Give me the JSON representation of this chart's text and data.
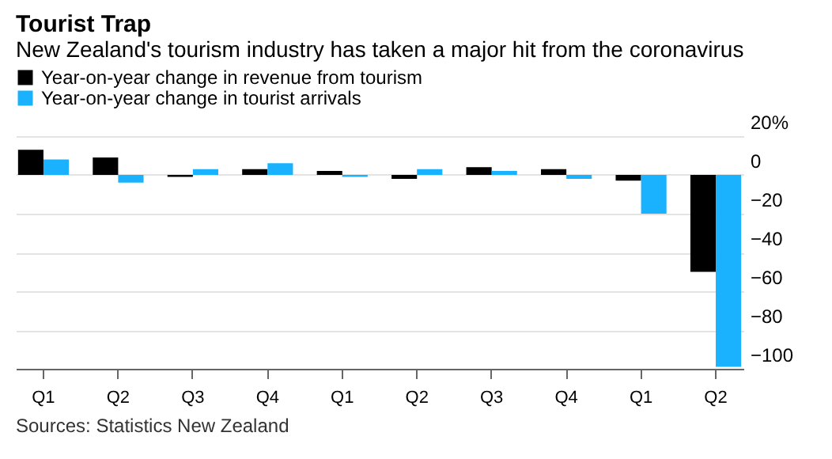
{
  "chart_data": {
    "type": "bar",
    "title": "Tourist Trap",
    "subtitle": "New Zealand's tourism industry has taken a major hit from the coronavirus",
    "categories": [
      "Q1",
      "Q2",
      "Q3",
      "Q4",
      "Q1",
      "Q2",
      "Q3",
      "Q4",
      "Q1",
      "Q2"
    ],
    "series": [
      {
        "name": "Year-on-year change in revenue from tourism",
        "color": "#000000",
        "values": [
          13,
          9,
          -1,
          3,
          2,
          -2,
          4,
          3,
          -3,
          -50
        ]
      },
      {
        "name": "Year-on-year change in tourist arrivals",
        "color": "#1ab2ff",
        "values": [
          8,
          -4,
          3,
          6,
          -1,
          3,
          2,
          -2,
          -20,
          -99
        ]
      }
    ],
    "ylim": [
      -100,
      20
    ],
    "yticks": [
      {
        "value": 20,
        "label": "20%"
      },
      0,
      -20,
      -40,
      -60,
      -80,
      -100
    ],
    "grid": "y",
    "legend": "top left",
    "annotations": [
      "Sources: Statistics New Zealand"
    ]
  }
}
